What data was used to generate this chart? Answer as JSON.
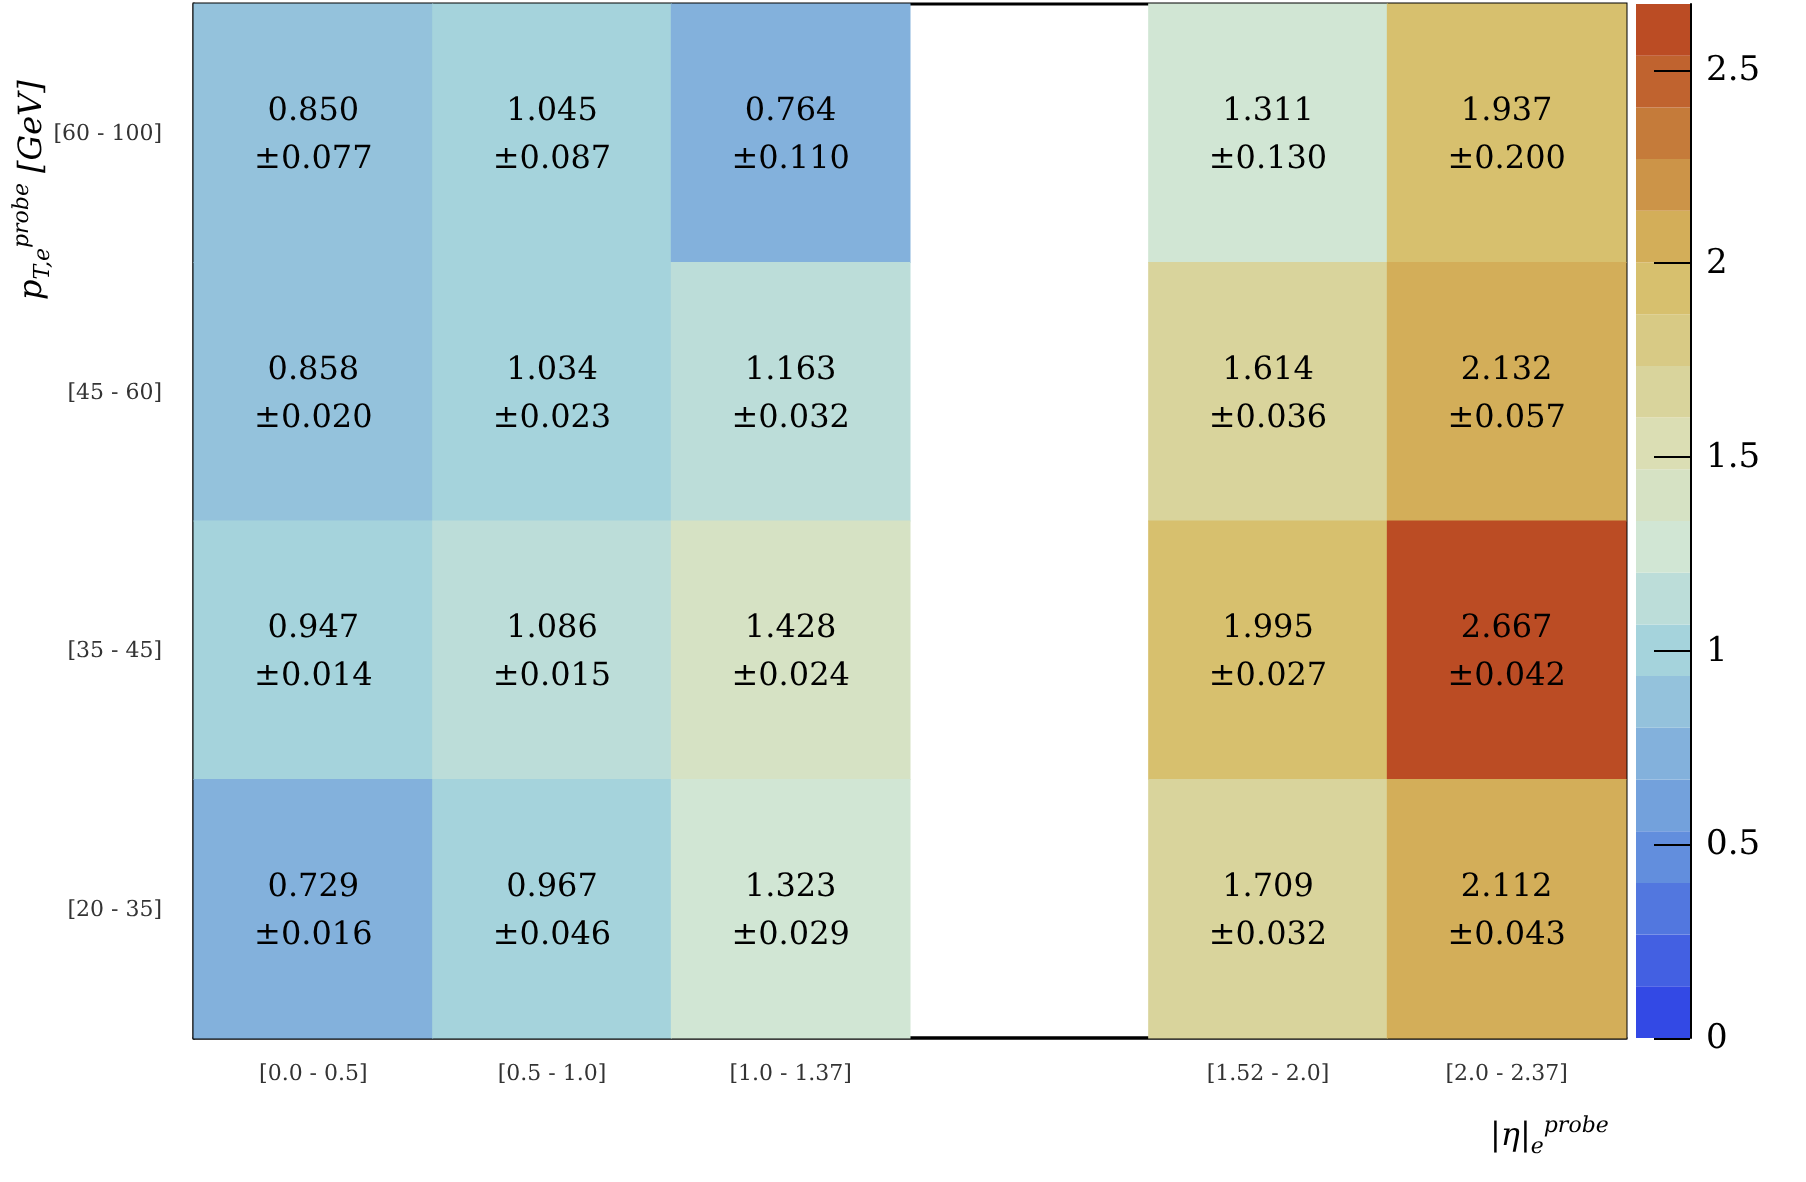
{
  "chart_data": {
    "type": "heatmap",
    "xlabel": "|η|$_{e}$$^{probe}$",
    "ylabel": "p$_{T,e}$$^{probe}$ [GeV]",
    "categories": [
      "[0.0 - 0.5]",
      "[0.5 - 1.0]",
      "[1.0 - 1.37]",
      null,
      "[1.52 - 2.0]",
      "[2.0 - 2.37]"
    ],
    "y_categories": [
      "[60 - 100]",
      "[45 - 60]",
      "[35 - 45]",
      "[20 - 35]"
    ],
    "cells": [
      [
        0.85,
        1.045,
        0.764,
        null,
        1.311,
        1.937
      ],
      [
        0.858,
        1.034,
        1.163,
        null,
        1.614,
        2.132
      ],
      [
        0.947,
        1.086,
        1.428,
        null,
        1.995,
        2.667
      ],
      [
        0.729,
        0.967,
        1.323,
        null,
        1.709,
        2.112
      ]
    ],
    "cell_labels": [
      [
        "0.850\n±0.077",
        "1.045\n±0.087",
        "0.764\n±0.110",
        null,
        "1.311\n±0.130",
        "1.937\n±0.200"
      ],
      [
        "0.858\n±0.020",
        "1.034\n±0.023",
        "1.163\n±0.032",
        null,
        "1.614\n±0.036",
        "2.132\n±0.057"
      ],
      [
        "0.947\n±0.014",
        "1.086\n±0.015",
        "1.428\n±0.024",
        null,
        "1.995\n±0.027",
        "2.667\n±0.042"
      ],
      [
        "0.729\n±0.016",
        "0.967\n±0.046",
        "1.323\n±0.029",
        null,
        "1.709\n±0.032",
        "2.112\n±0.043"
      ]
    ],
    "clim": [
      0,
      2.67
    ],
    "cticks": [
      0,
      0.5,
      1,
      1.5,
      2,
      2.5
    ]
  }
}
